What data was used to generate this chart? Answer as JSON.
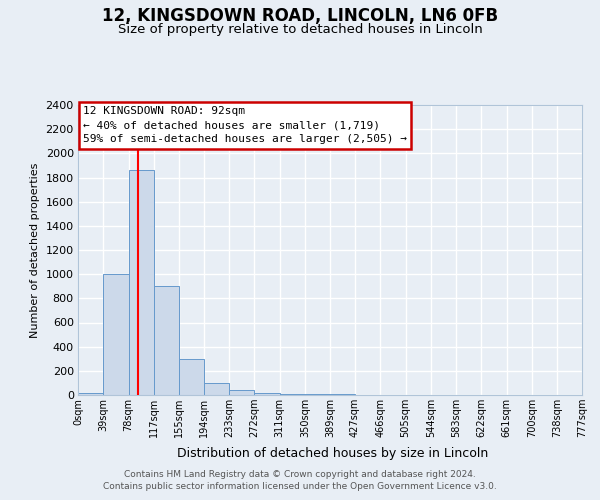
{
  "title1": "12, KINGSDOWN ROAD, LINCOLN, LN6 0FB",
  "title2": "Size of property relative to detached houses in Lincoln",
  "xlabel": "Distribution of detached houses by size in Lincoln",
  "ylabel": "Number of detached properties",
  "bin_edges": [
    0,
    39,
    78,
    117,
    155,
    194,
    233,
    272,
    311,
    350,
    389,
    427,
    466,
    505,
    544,
    583,
    622,
    661,
    700,
    738,
    777
  ],
  "bin_heights": [
    20,
    1000,
    1860,
    900,
    300,
    100,
    40,
    20,
    10,
    5,
    5,
    2,
    1,
    1,
    1,
    1,
    0,
    0,
    0,
    0
  ],
  "bar_color": "#ccd9ea",
  "bar_edge_color": "#6699cc",
  "red_line_x": 92,
  "ylim": [
    0,
    2400
  ],
  "yticks": [
    0,
    200,
    400,
    600,
    800,
    1000,
    1200,
    1400,
    1600,
    1800,
    2000,
    2200,
    2400
  ],
  "xtick_labels": [
    "0sqm",
    "39sqm",
    "78sqm",
    "117sqm",
    "155sqm",
    "194sqm",
    "233sqm",
    "272sqm",
    "311sqm",
    "350sqm",
    "389sqm",
    "427sqm",
    "466sqm",
    "505sqm",
    "544sqm",
    "583sqm",
    "622sqm",
    "661sqm",
    "700sqm",
    "738sqm",
    "777sqm"
  ],
  "annotation_title": "12 KINGSDOWN ROAD: 92sqm",
  "annotation_line1": "← 40% of detached houses are smaller (1,719)",
  "annotation_line2": "59% of semi-detached houses are larger (2,505) →",
  "footer1": "Contains HM Land Registry data © Crown copyright and database right 2024.",
  "footer2": "Contains public sector information licensed under the Open Government Licence v3.0.",
  "background_color": "#e8eef5",
  "grid_color": "#ffffff",
  "annotation_box_edge": "#cc0000",
  "title1_fontsize": 12,
  "title2_fontsize": 9.5,
  "ylabel_fontsize": 8,
  "xlabel_fontsize": 9,
  "ytick_fontsize": 8,
  "xtick_fontsize": 7,
  "ann_fontsize": 8,
  "footer_fontsize": 6.5
}
